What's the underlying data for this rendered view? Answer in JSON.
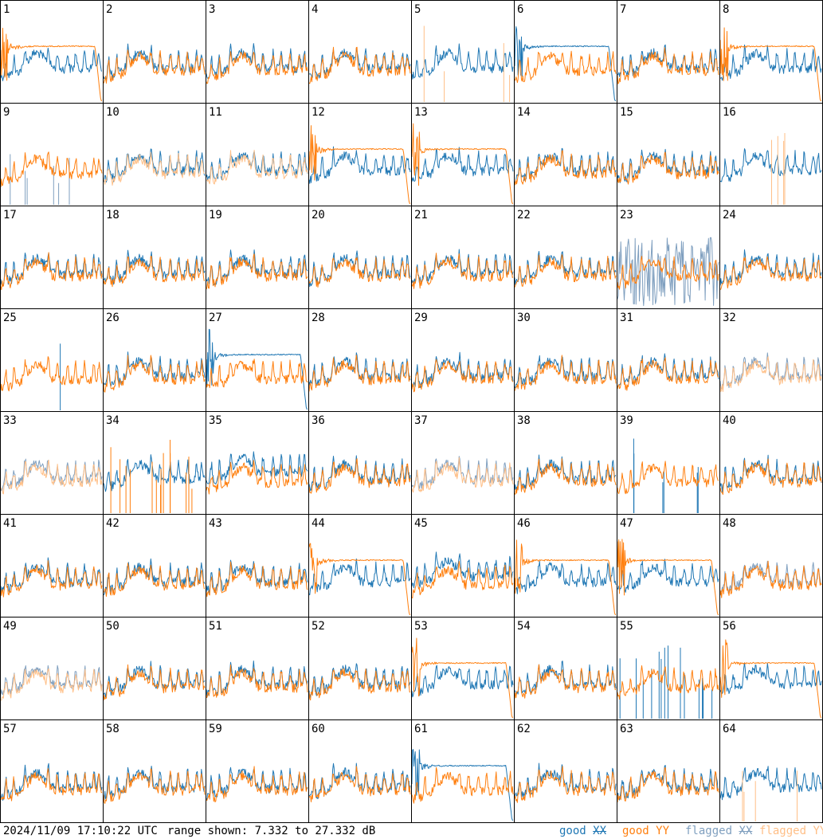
{
  "chart_data": {
    "type": "line",
    "panel_count": 64,
    "rows": 8,
    "cols": 8,
    "panel_labels": [
      "1",
      "2",
      "3",
      "4",
      "5",
      "6",
      "7",
      "8",
      "9",
      "10",
      "11",
      "12",
      "13",
      "14",
      "15",
      "16",
      "17",
      "18",
      "19",
      "20",
      "21",
      "22",
      "23",
      "24",
      "25",
      "26",
      "27",
      "28",
      "29",
      "30",
      "31",
      "32",
      "33",
      "34",
      "35",
      "36",
      "37",
      "38",
      "39",
      "40",
      "41",
      "42",
      "43",
      "44",
      "45",
      "46",
      "47",
      "48",
      "49",
      "50",
      "51",
      "52",
      "53",
      "54",
      "55",
      "56",
      "57",
      "58",
      "59",
      "60",
      "61",
      "62",
      "63",
      "64"
    ],
    "y_range_db": [
      7.332,
      27.332
    ],
    "series": [
      {
        "name": "good XX",
        "color": "#1f77b4"
      },
      {
        "name": "good YY",
        "color": "#ff7f0e"
      },
      {
        "name": "flagged XX",
        "color": "#7f9fbf"
      },
      {
        "name": "flagged YY",
        "color": "#ffbf87"
      }
    ],
    "panel_states": {
      "1": "yy_bad",
      "5": "yy_spikes",
      "6": "xx_bad",
      "8": "yy_bad",
      "9": "xx_flag_spikes",
      "10": "yy_flagged",
      "11": "yy_flagged",
      "12": "yy_bad",
      "13": "yy_bad",
      "16": "yy_spikes",
      "23": "xx_flag_noise",
      "25": "xx_single_spike",
      "27": "xx_bad",
      "32": "both_flagged",
      "33": "both_flagged_light",
      "34": "yy_spikes_dense",
      "35": "xx_high",
      "37": "both_flagged_light",
      "39": "xx_spikes",
      "44": "yy_bad",
      "45": "xx_mid",
      "46": "yy_flat",
      "47": "yy_bad",
      "48": "xx_flagged",
      "49": "both_flagged",
      "53": "yy_bad",
      "55": "xx_spikes_dense",
      "56": "yy_flat",
      "61": "xx_bad",
      "64": "yy_spikes"
    }
  },
  "footer": {
    "timestamp": "2024/11/09 17:10:22 UTC",
    "range_text": "range shown: 7.332 to 27.332 dB",
    "legend": [
      {
        "word": "good",
        "pol": "XX",
        "color": "#1f77b4"
      },
      {
        "word": "good",
        "pol": "YY",
        "color": "#ff7f0e"
      },
      {
        "word": "flagged",
        "pol": "XX",
        "color": "#7f9fbf"
      },
      {
        "word": "flagged",
        "pol": "YY",
        "color": "#ffbf87"
      }
    ]
  }
}
